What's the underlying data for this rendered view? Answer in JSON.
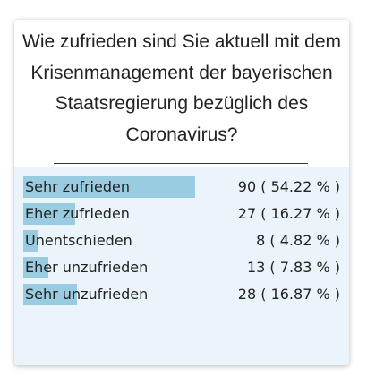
{
  "poll": {
    "question": "Wie zufrieden sind Sie aktuell mit dem Krisenmanagement der bayerischen Staatsregierung bezüglich des Coronavirus?",
    "colors": {
      "bar": "#99cce0",
      "results_background": "#eaf4fa"
    },
    "options": [
      {
        "label": "Sehr zufrieden",
        "value_text": "90 ( 54.22 % )",
        "votes": 90,
        "percent": 54.22
      },
      {
        "label": "Eher zufrieden",
        "value_text": "27 ( 16.27 % )",
        "votes": 27,
        "percent": 16.27
      },
      {
        "label": "Unentschieden",
        "value_text": "8 ( 4.82 % )",
        "votes": 8,
        "percent": 4.82
      },
      {
        "label": "Eher unzufrieden",
        "value_text": "13 ( 7.83 % )",
        "votes": 13,
        "percent": 7.83
      },
      {
        "label": "Sehr unzufrieden",
        "value_text": "28 ( 16.87 % )",
        "votes": 28,
        "percent": 16.87
      }
    ]
  }
}
